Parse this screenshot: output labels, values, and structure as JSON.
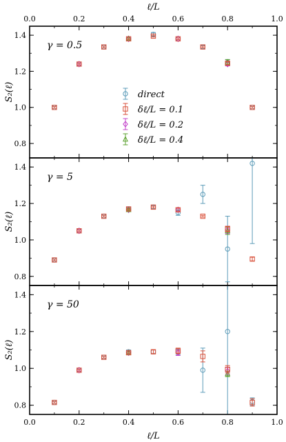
{
  "chart_data": {
    "type": "scatter",
    "layout": "3 stacked panels, shared x axis",
    "xlabel": "ℓ/L",
    "ylabel": "S₂(ℓ)",
    "xlim": [
      0.0,
      1.0
    ],
    "xticks": [
      "0.0",
      "0.2",
      "0.4",
      "0.6",
      "0.8",
      "1.0"
    ],
    "legend": {
      "location": "panel 1, center",
      "entries": [
        {
          "key": "direct",
          "label": "direct"
        },
        {
          "key": "dl01",
          "label": "δℓ/L = 0.1"
        },
        {
          "key": "dl02",
          "label": "δℓ/L = 0.2"
        },
        {
          "key": "dl04",
          "label": "δℓ/L = 0.4"
        }
      ]
    },
    "series_styles": {
      "direct": {
        "color": "#5b9bb8",
        "marker": "circle"
      },
      "dl01": {
        "color": "#d9523c",
        "marker": "square"
      },
      "dl02": {
        "color": "#c13fc9",
        "marker": "diamond"
      },
      "dl04": {
        "color": "#5aa02c",
        "marker": "triangle"
      }
    },
    "panels": [
      {
        "label": "γ = 0.5",
        "ylim": [
          0.72,
          1.45
        ],
        "yticks": [
          "0.8",
          "1.0",
          "1.2",
          "1.4"
        ],
        "series": [
          {
            "key": "direct",
            "x": [
              0.1,
              0.2,
              0.3,
              0.4,
              0.5,
              0.6,
              0.7,
              0.8,
              0.9
            ],
            "y": [
              1.0,
              1.24,
              1.335,
              1.38,
              1.405,
              1.38,
              1.335,
              1.25,
              1.0
            ],
            "err": [
              0.005,
              0.005,
              0.005,
              0.005,
              0.01,
              0.005,
              0.01,
              0.015,
              0.005
            ]
          },
          {
            "key": "dl01",
            "x": [
              0.1,
              0.2,
              0.3,
              0.4,
              0.5,
              0.6,
              0.7,
              0.8,
              0.9
            ],
            "y": [
              1.0,
              1.24,
              1.335,
              1.38,
              1.395,
              1.38,
              1.335,
              1.245,
              1.0
            ],
            "err": [
              0.005,
              0.005,
              0.005,
              0.005,
              0.005,
              0.005,
              0.005,
              0.01,
              0.005
            ]
          },
          {
            "key": "dl02",
            "x": [
              0.2,
              0.4,
              0.6,
              0.8
            ],
            "y": [
              1.24,
              1.38,
              1.38,
              1.24
            ],
            "err": [
              0.005,
              0.005,
              0.005,
              0.01
            ]
          },
          {
            "key": "dl04",
            "x": [
              0.4,
              0.8
            ],
            "y": [
              1.38,
              1.25
            ],
            "err": [
              0.005,
              0.015
            ]
          }
        ]
      },
      {
        "label": "γ = 5",
        "ylim": [
          0.75,
          1.45
        ],
        "yticks": [
          "0.8",
          "1.0",
          "1.2",
          "1.4"
        ],
        "series": [
          {
            "key": "direct",
            "x": [
              0.1,
              0.2,
              0.3,
              0.4,
              0.5,
              0.6,
              0.7,
              0.8,
              0.9
            ],
            "y": [
              0.89,
              1.05,
              1.13,
              1.17,
              1.18,
              1.15,
              1.25,
              0.95,
              1.42
            ],
            "err": [
              0.005,
              0.005,
              0.005,
              0.01,
              0.01,
              0.015,
              0.05,
              0.18,
              0.44
            ]
          },
          {
            "key": "dl01",
            "x": [
              0.1,
              0.2,
              0.3,
              0.4,
              0.5,
              0.6,
              0.7,
              0.8,
              0.9
            ],
            "y": [
              0.89,
              1.05,
              1.13,
              1.17,
              1.18,
              1.165,
              1.13,
              1.06,
              0.895
            ],
            "err": [
              0.005,
              0.005,
              0.005,
              0.005,
              0.005,
              0.01,
              0.005,
              0.015,
              0.01
            ]
          },
          {
            "key": "dl02",
            "x": [
              0.2,
              0.4,
              0.6,
              0.8
            ],
            "y": [
              1.05,
              1.165,
              1.165,
              1.055
            ],
            "err": [
              0.005,
              0.005,
              0.01,
              0.02
            ]
          },
          {
            "key": "dl04",
            "x": [
              0.4,
              0.8
            ],
            "y": [
              1.165,
              1.05
            ],
            "err": [
              0.005,
              0.02
            ]
          }
        ]
      },
      {
        "label": "γ = 50",
        "ylim": [
          0.75,
          1.45
        ],
        "yticks": [
          "0.8",
          "1.0",
          "1.2",
          "1.4"
        ],
        "series": [
          {
            "key": "direct",
            "x": [
              0.1,
              0.2,
              0.3,
              0.4,
              0.5,
              0.6,
              0.7,
              0.8,
              0.9
            ],
            "y": [
              0.815,
              0.99,
              1.06,
              1.09,
              1.09,
              1.09,
              0.99,
              1.2,
              0.82
            ],
            "err": [
              0.005,
              0.005,
              0.005,
              0.01,
              0.01,
              0.015,
              0.12,
              0.55,
              0.02
            ]
          },
          {
            "key": "dl01",
            "x": [
              0.1,
              0.2,
              0.3,
              0.4,
              0.5,
              0.6,
              0.7,
              0.8,
              0.9
            ],
            "y": [
              0.815,
              0.99,
              1.06,
              1.085,
              1.09,
              1.095,
              1.065,
              0.995,
              0.815
            ],
            "err": [
              0.005,
              0.005,
              0.005,
              0.005,
              0.01,
              0.015,
              0.03,
              0.02,
              0.02
            ]
          },
          {
            "key": "dl02",
            "x": [
              0.2,
              0.4,
              0.6,
              0.8
            ],
            "y": [
              0.99,
              1.085,
              1.085,
              0.985
            ],
            "err": [
              0.005,
              0.005,
              0.015,
              0.02
            ]
          },
          {
            "key": "dl04",
            "x": [
              0.4,
              0.8
            ],
            "y": [
              1.085,
              0.97
            ],
            "err": [
              0.005,
              0.015
            ]
          }
        ]
      }
    ]
  }
}
